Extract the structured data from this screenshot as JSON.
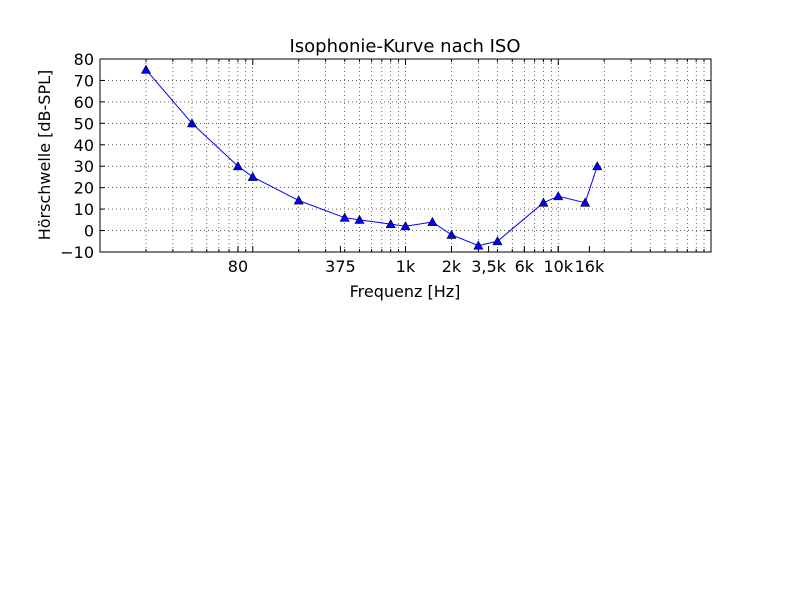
{
  "chart_data": {
    "type": "line",
    "title": "Isophonie-Kurve nach ISO",
    "xlabel": "Frequenz [Hz]",
    "ylabel": "Hörschwelle [dB-SPL]",
    "xscale": "log",
    "xlim": [
      10,
      100000
    ],
    "ylim": [
      -10,
      80
    ],
    "grid": true,
    "x_ticks": [
      {
        "value": 80,
        "label": "80"
      },
      {
        "value": 375,
        "label": "375"
      },
      {
        "value": 1000,
        "label": "1k"
      },
      {
        "value": 2000,
        "label": "2k"
      },
      {
        "value": 3500,
        "label": "3,5k"
      },
      {
        "value": 6000,
        "label": "6k"
      },
      {
        "value": 10000,
        "label": "10k"
      },
      {
        "value": 16000,
        "label": "16k"
      }
    ],
    "y_ticks": [
      -10,
      0,
      10,
      20,
      30,
      40,
      50,
      60,
      70,
      80
    ],
    "series": [
      {
        "color": "#0000ff",
        "marker": "triangle-up",
        "x": [
          20,
          40,
          80,
          100,
          200,
          400,
          500,
          800,
          1000,
          1500,
          2000,
          3000,
          4000,
          8000,
          10000,
          15000,
          18000
        ],
        "y": [
          75,
          50,
          30,
          25,
          14,
          6,
          5,
          3,
          2,
          4,
          -2,
          -7,
          -5,
          13,
          16,
          13,
          30
        ]
      }
    ]
  }
}
